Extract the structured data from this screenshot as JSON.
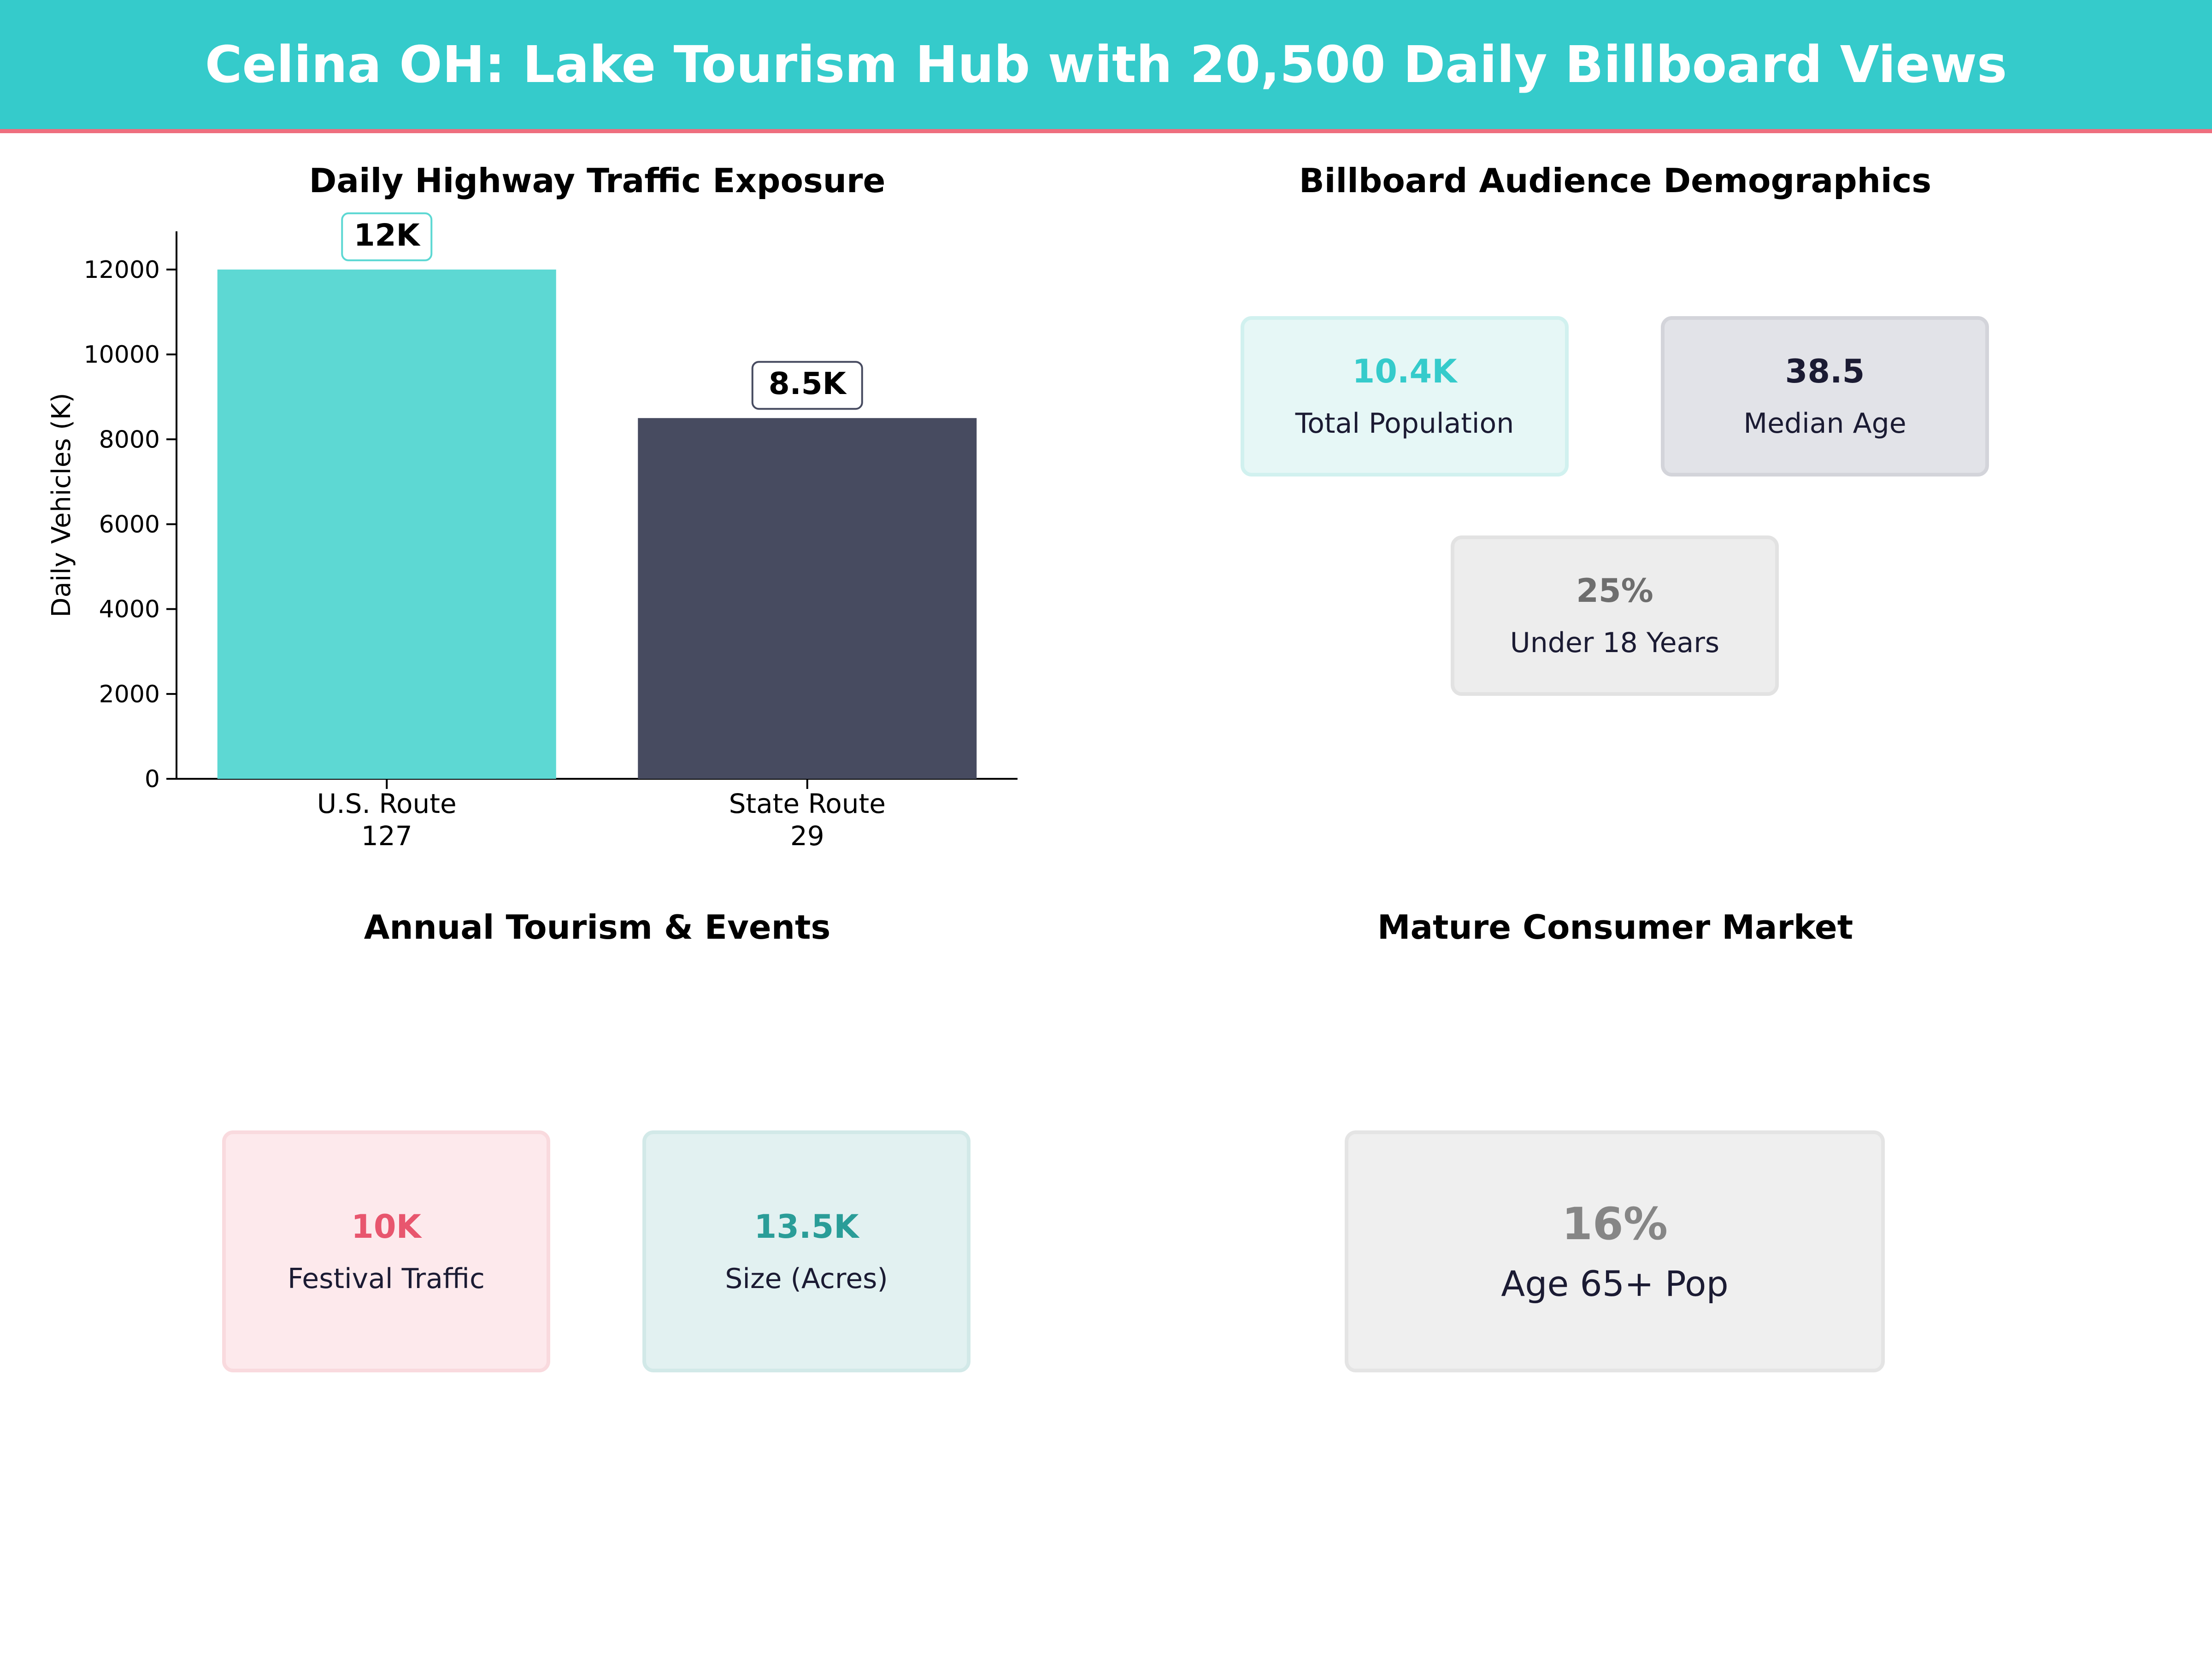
{
  "header": {
    "title": "Celina OH: Lake Tourism Hub with 20,500 Daily Billboard Views"
  },
  "colors": {
    "banner": "#35cbcb",
    "banner_rule": "#ee6e7e",
    "teal": "#5dd8d3",
    "navy": "#474b60"
  },
  "traffic_panel": {
    "title": "Daily Highway Traffic Exposure"
  },
  "demographics_panel": {
    "title": "Billboard Audience Demographics",
    "cards": [
      {
        "value": "10.4K",
        "label": "Total Population",
        "accent": "#35cbcb"
      },
      {
        "value": "38.5",
        "label": "Median Age",
        "accent": "#1b1b33"
      },
      {
        "value": "25%",
        "label": "Under 18 Years",
        "accent": "#6e6e6e"
      }
    ]
  },
  "tourism_panel": {
    "title": "Annual Tourism & Events",
    "cards": [
      {
        "value": "10K",
        "label": "Festival Traffic",
        "accent": "#e8566e"
      },
      {
        "value": "13.5K",
        "label": "Size (Acres)",
        "accent": "#2a9d98"
      }
    ]
  },
  "market_panel": {
    "title": "Mature Consumer Market",
    "card": {
      "value": "16%",
      "label": "Age 65+ Pop",
      "accent": "#868686"
    }
  },
  "chart_data": {
    "type": "bar",
    "title": "Daily Highway Traffic Exposure",
    "categories": [
      [
        "U.S. Route",
        "127"
      ],
      [
        "State Route",
        "29"
      ]
    ],
    "values": [
      12000,
      8500
    ],
    "data_labels": [
      "12K",
      "8.5K"
    ],
    "bar_colors": [
      "#5dd8d3",
      "#474b60"
    ],
    "label_border_colors": [
      "#5dd8d3",
      "#474b60"
    ],
    "ylabel": "Daily Vehicles (K)",
    "xlabel": "",
    "ylim": [
      0,
      12900
    ],
    "yticks": [
      0,
      2000,
      4000,
      6000,
      8000,
      10000,
      12000
    ],
    "grid": false
  }
}
